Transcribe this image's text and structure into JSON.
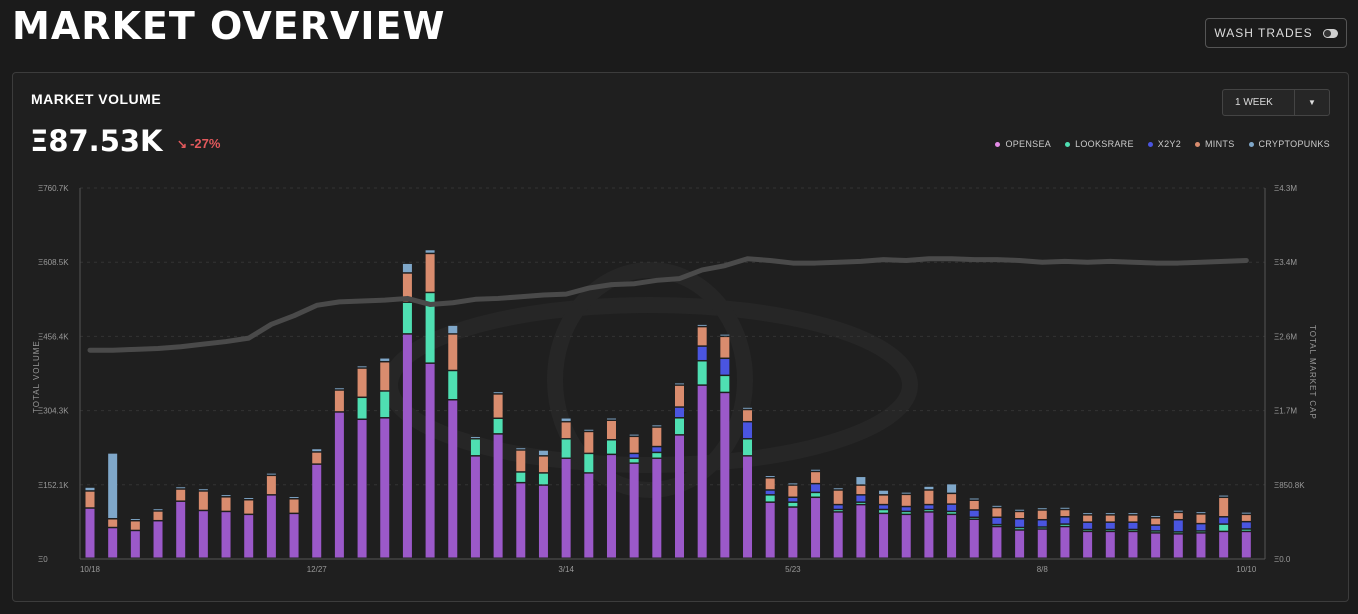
{
  "header": {
    "title": "MARKET OVERVIEW",
    "wash_trades_label": "WASH TRADES"
  },
  "panel": {
    "title": "MARKET VOLUME",
    "total_value": "Ξ87.53K",
    "change": "-27%",
    "range_select": "1 WEEK"
  },
  "colors": {
    "OPENSEA": "#9b59c9",
    "LOOKSRARE": "#4fdfb2",
    "X2Y2": "#4a55e0",
    "MINTS": "#d98c6e",
    "CRYPTOPUNKS": "#7fa7c9",
    "market_cap_line": "#4a4a4a",
    "change_negative": "#e2595c"
  },
  "chart_data": {
    "type": "bar",
    "stacked": true,
    "xlabel": "",
    "ylabel": "TOTAL VOLUME",
    "y2label": "TOTAL MARKET CAP",
    "ylim": [
      0,
      760700
    ],
    "y2lim": [
      0,
      4300000
    ],
    "y_ticks": [
      "Ξ0",
      "Ξ152.1K",
      "Ξ304.3K",
      "Ξ456.4K",
      "Ξ608.5K",
      "Ξ760.7K"
    ],
    "y2_ticks": [
      "Ξ0.0",
      "Ξ850.8K",
      "Ξ1.7M",
      "Ξ2.6M",
      "Ξ3.4M",
      "Ξ4.3M"
    ],
    "x_tick_labels": [
      {
        "index": 0,
        "label": "10/18"
      },
      {
        "index": 10,
        "label": "12/27"
      },
      {
        "index": 21,
        "label": "3/14"
      },
      {
        "index": 31,
        "label": "5/23"
      },
      {
        "index": 42,
        "label": "8/8"
      },
      {
        "index": 51,
        "label": "10/10"
      }
    ],
    "legend_position": "top-right",
    "grid": true,
    "series": [
      {
        "name": "OPENSEA",
        "values": [
          103000,
          63000,
          57000,
          77000,
          117000,
          98000,
          96000,
          90000,
          130000,
          92000,
          193000,
          300000,
          285000,
          288000,
          460000,
          400000,
          325000,
          210000,
          255000,
          155000,
          150000,
          205000,
          175000,
          213000,
          195000,
          205000,
          253000,
          355000,
          340000,
          210000,
          115000,
          105000,
          125000,
          95000,
          110000,
          92000,
          90000,
          95000,
          90000,
          80000,
          65000,
          58000,
          60000,
          65000,
          55000,
          55000,
          55000,
          52000,
          50000,
          52000,
          55000,
          55000
        ]
      },
      {
        "name": "LOOKSRARE",
        "values": [
          0,
          0,
          0,
          0,
          0,
          0,
          0,
          0,
          0,
          0,
          0,
          0,
          45000,
          55000,
          65000,
          145000,
          60000,
          35000,
          32000,
          22000,
          25000,
          40000,
          40000,
          30000,
          10000,
          12000,
          35000,
          50000,
          35000,
          35000,
          15000,
          10000,
          10000,
          5000,
          5000,
          8000,
          6000,
          5000,
          6000,
          4000,
          4000,
          5000,
          4000,
          5000,
          4000,
          4000,
          4000,
          4000,
          4000,
          4000,
          15000,
          5000
        ]
      },
      {
        "name": "X2Y2",
        "values": [
          0,
          0,
          0,
          0,
          0,
          0,
          0,
          0,
          0,
          0,
          0,
          0,
          0,
          0,
          0,
          0,
          0,
          0,
          0,
          0,
          0,
          0,
          0,
          0,
          10000,
          12000,
          22000,
          30000,
          35000,
          35000,
          10000,
          10000,
          18000,
          10000,
          15000,
          10000,
          10000,
          10000,
          15000,
          15000,
          15000,
          18000,
          15000,
          15000,
          15000,
          15000,
          15000,
          12000,
          25000,
          15000,
          15000,
          15000
        ]
      },
      {
        "name": "MINTS",
        "values": [
          35000,
          18000,
          20000,
          20000,
          25000,
          40000,
          30000,
          30000,
          40000,
          30000,
          25000,
          45000,
          60000,
          60000,
          60000,
          80000,
          75000,
          0,
          50000,
          45000,
          35000,
          35000,
          45000,
          40000,
          35000,
          40000,
          45000,
          40000,
          45000,
          25000,
          25000,
          25000,
          25000,
          30000,
          20000,
          20000,
          25000,
          30000,
          22000,
          20000,
          20000,
          15000,
          20000,
          15000,
          15000,
          15000,
          15000,
          15000,
          15000,
          20000,
          40000,
          15000
        ]
      },
      {
        "name": "CRYPTOPUNKS",
        "values": [
          8000,
          135000,
          5000,
          5000,
          5000,
          5000,
          5000,
          5000,
          5000,
          5000,
          7000,
          5000,
          5000,
          8000,
          20000,
          8000,
          18000,
          5000,
          5000,
          5000,
          12000,
          8000,
          5000,
          5000,
          5000,
          5000,
          5000,
          5000,
          5000,
          5000,
          5000,
          5000,
          5000,
          5000,
          18000,
          10000,
          5000,
          8000,
          20000,
          5000,
          5000,
          5000,
          5000,
          5000,
          5000,
          5000,
          5000,
          5000,
          5000,
          5000,
          5000,
          5000
        ]
      },
      {
        "name": "TOTAL MARKET CAP",
        "type": "line",
        "values": [
          2420000,
          2420000,
          2430000,
          2440000,
          2460000,
          2490000,
          2520000,
          2560000,
          2720000,
          2820000,
          2940000,
          2980000,
          2990000,
          3000000,
          3020000,
          2950000,
          2970000,
          3010000,
          3020000,
          3040000,
          3060000,
          3070000,
          3140000,
          3180000,
          3190000,
          3230000,
          3250000,
          3350000,
          3400000,
          3480000,
          3460000,
          3430000,
          3430000,
          3440000,
          3450000,
          3470000,
          3460000,
          3480000,
          3480000,
          3470000,
          3470000,
          3460000,
          3440000,
          3450000,
          3440000,
          3450000,
          3440000,
          3430000,
          3430000,
          3440000,
          3450000,
          3460000
        ]
      }
    ]
  }
}
